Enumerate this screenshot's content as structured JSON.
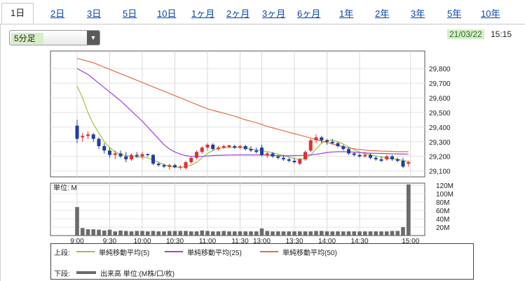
{
  "tabs": [
    "1日",
    "2日",
    "3日",
    "5日",
    "10日",
    "1ヶ月",
    "2ヶ月",
    "3ヶ月",
    "6ヶ月",
    "1年",
    "2年",
    "3年",
    "5年",
    "10年"
  ],
  "active_tab": "1日",
  "interval_select": {
    "value": "5分足"
  },
  "timestamp": {
    "date": "21/03/22",
    "time": "15:15"
  },
  "colors": {
    "up": "#e03030",
    "down": "#1f3fa0",
    "ma5": "#9fc23a",
    "ma25": "#a040e0",
    "ma50": "#e07040",
    "volume": "#6b6b6b"
  },
  "chart_data": [
    {
      "type": "candlestick",
      "y_ticks": [
        "29,100",
        "29,200",
        "29,300",
        "29,400",
        "29,500",
        "29,600",
        "29,700",
        "29,800"
      ],
      "y_range": [
        29060,
        29920
      ],
      "x_ticks": [
        "9:00",
        "9:30",
        "10:00",
        "10:30",
        "11:00",
        "11:30",
        "13:00",
        "13:30",
        "14:00",
        "14:30",
        "15:00"
      ],
      "candles": [
        [
          29410,
          29450,
          29290,
          29320
        ],
        [
          29330,
          29360,
          29300,
          29340
        ],
        [
          29340,
          29370,
          29320,
          29350
        ],
        [
          29350,
          29360,
          29300,
          29320
        ],
        [
          29320,
          29330,
          29250,
          29270
        ],
        [
          29270,
          29290,
          29220,
          29240
        ],
        [
          29240,
          29260,
          29190,
          29210
        ],
        [
          29210,
          29240,
          29180,
          29220
        ],
        [
          29220,
          29240,
          29190,
          29200
        ],
        [
          29200,
          29230,
          29160,
          29180
        ],
        [
          29180,
          29220,
          29170,
          29210
        ],
        [
          29210,
          29230,
          29190,
          29200
        ],
        [
          29200,
          29230,
          29180,
          29215
        ],
        [
          29215,
          29220,
          29200,
          29210
        ],
        [
          29210,
          29215,
          29140,
          29150
        ],
        [
          29150,
          29160,
          29130,
          29140
        ],
        [
          29140,
          29150,
          29120,
          29130
        ],
        [
          29130,
          29150,
          29110,
          29140
        ],
        [
          29140,
          29150,
          29120,
          29125
        ],
        [
          29125,
          29140,
          29110,
          29130
        ],
        [
          29120,
          29170,
          29110,
          29160
        ],
        [
          29160,
          29200,
          29150,
          29190
        ],
        [
          29190,
          29240,
          29180,
          29230
        ],
        [
          29230,
          29270,
          29220,
          29260
        ],
        [
          29260,
          29290,
          29240,
          29280
        ],
        [
          29280,
          29290,
          29240,
          29250
        ],
        [
          29250,
          29270,
          29240,
          29260
        ],
        [
          29260,
          29280,
          29250,
          29270
        ],
        [
          29265,
          29280,
          29255,
          29275
        ],
        [
          29270,
          29280,
          29250,
          29260
        ],
        [
          29260,
          29280,
          29250,
          29270
        ],
        [
          29270,
          29280,
          29240,
          29250
        ],
        [
          29250,
          29270,
          29230,
          29240
        ],
        [
          29240,
          29260,
          29220,
          29230
        ],
        [
          29260,
          29280,
          29200,
          29210
        ],
        [
          29210,
          29230,
          29190,
          29220
        ],
        [
          29220,
          29230,
          29190,
          29200
        ],
        [
          29200,
          29210,
          29180,
          29190
        ],
        [
          29190,
          29210,
          29170,
          29180
        ],
        [
          29180,
          29190,
          29160,
          29170
        ],
        [
          29170,
          29190,
          29150,
          29160
        ],
        [
          29150,
          29190,
          29140,
          29180
        ],
        [
          29180,
          29240,
          29170,
          29230
        ],
        [
          29240,
          29320,
          29230,
          29310
        ],
        [
          29310,
          29350,
          29290,
          29330
        ],
        [
          29330,
          29340,
          29290,
          29310
        ],
        [
          29310,
          29320,
          29280,
          29300
        ],
        [
          29300,
          29320,
          29280,
          29290
        ],
        [
          29290,
          29300,
          29260,
          29270
        ],
        [
          29270,
          29280,
          29240,
          29250
        ],
        [
          29250,
          29260,
          29210,
          29220
        ],
        [
          29220,
          29230,
          29200,
          29210
        ],
        [
          29210,
          29220,
          29190,
          29200
        ],
        [
          29200,
          29230,
          29190,
          29210
        ],
        [
          29210,
          29220,
          29180,
          29190
        ],
        [
          29190,
          29200,
          29170,
          29180
        ],
        [
          29180,
          29200,
          29160,
          29170
        ],
        [
          29180,
          29210,
          29170,
          29200
        ],
        [
          29200,
          29210,
          29170,
          29180
        ],
        [
          29180,
          29190,
          29160,
          29170
        ],
        [
          29170,
          29190,
          29120,
          29130
        ],
        [
          29150,
          29170,
          29130,
          29160
        ]
      ],
      "ma": [
        {
          "name": "単純移動平均(5)",
          "values": [
            29680,
            29600,
            29500,
            29420,
            29360,
            29300,
            29260,
            29230,
            29215,
            29205,
            29200,
            29195,
            29195,
            29190,
            29175,
            29160,
            29145,
            29130,
            29128,
            29125,
            29130,
            29140,
            29160,
            29190,
            29220,
            29240,
            29255,
            29260,
            29262,
            29260,
            29262,
            29260,
            29250,
            29245,
            29240,
            29232,
            29225,
            29215,
            29205,
            29195,
            29185,
            29180,
            29185,
            29210,
            29250,
            29290,
            29310,
            29310,
            29300,
            29285,
            29265,
            29245,
            29230,
            29218,
            29210,
            29203,
            29196,
            29190,
            29185,
            29180,
            29172,
            29165
          ]
        },
        {
          "name": "単純移動平均(25)",
          "values": [
            29800,
            29780,
            29760,
            29730,
            29700,
            29670,
            29640,
            29610,
            29580,
            29545,
            29510,
            29475,
            29440,
            29400,
            29360,
            29320,
            29280,
            29250,
            29230,
            29215,
            29205,
            29200,
            29200,
            29200,
            29203,
            29205,
            29207,
            29208,
            29209,
            29210,
            29210,
            29210,
            29210,
            29210,
            29210,
            29208,
            29206,
            29205,
            29204,
            29204,
            29205,
            29206,
            29208,
            29210,
            29214,
            29220,
            29226,
            29230,
            29232,
            29232,
            29231,
            29229,
            29226,
            29224,
            29222,
            29221,
            29220,
            29219,
            29218,
            29217,
            29216,
            29215
          ]
        },
        {
          "name": "単純移動平均(50)",
          "values": [
            29870,
            29860,
            29850,
            29840,
            29825,
            29810,
            29795,
            29780,
            29765,
            29750,
            29735,
            29720,
            29705,
            29690,
            29675,
            29660,
            29645,
            29630,
            29615,
            29600,
            29585,
            29570,
            29555,
            29540,
            29525,
            29515,
            29505,
            29495,
            29485,
            29475,
            29462,
            29450,
            29440,
            29430,
            29418,
            29405,
            29395,
            29385,
            29375,
            29365,
            29355,
            29345,
            29335,
            29325,
            29315,
            29305,
            29295,
            29285,
            29275,
            29265,
            29258,
            29252,
            29247,
            29243,
            29240,
            29238,
            29236,
            29235,
            29234,
            29233,
            29232,
            29232
          ]
        }
      ]
    },
    {
      "type": "bar",
      "label": "単位: M",
      "y_ticks": [
        "20M",
        "40M",
        "60M",
        "80M",
        "100M",
        "120M"
      ],
      "y_range": [
        0,
        125
      ],
      "values": [
        68,
        18,
        15,
        15,
        14,
        12,
        14,
        10,
        12,
        11,
        10,
        11,
        11,
        10,
        11,
        10,
        10,
        11,
        11,
        11,
        11,
        10,
        10,
        12,
        11,
        10,
        10,
        11,
        10,
        10,
        10,
        10,
        10,
        10,
        17,
        11,
        10,
        10,
        10,
        10,
        10,
        10,
        10,
        10,
        11,
        11,
        10,
        10,
        10,
        10,
        10,
        10,
        10,
        10,
        10,
        10,
        10,
        10,
        11,
        11,
        20,
        122
      ]
    }
  ],
  "legend": {
    "upper_label": "上段:",
    "lower_label": "下段:",
    "ma5": "単純移動平均(5)",
    "ma25": "単純移動平均(25)",
    "ma50": "単純移動平均(50)",
    "volume": "出来高 単位:(M株/口/枚)"
  }
}
